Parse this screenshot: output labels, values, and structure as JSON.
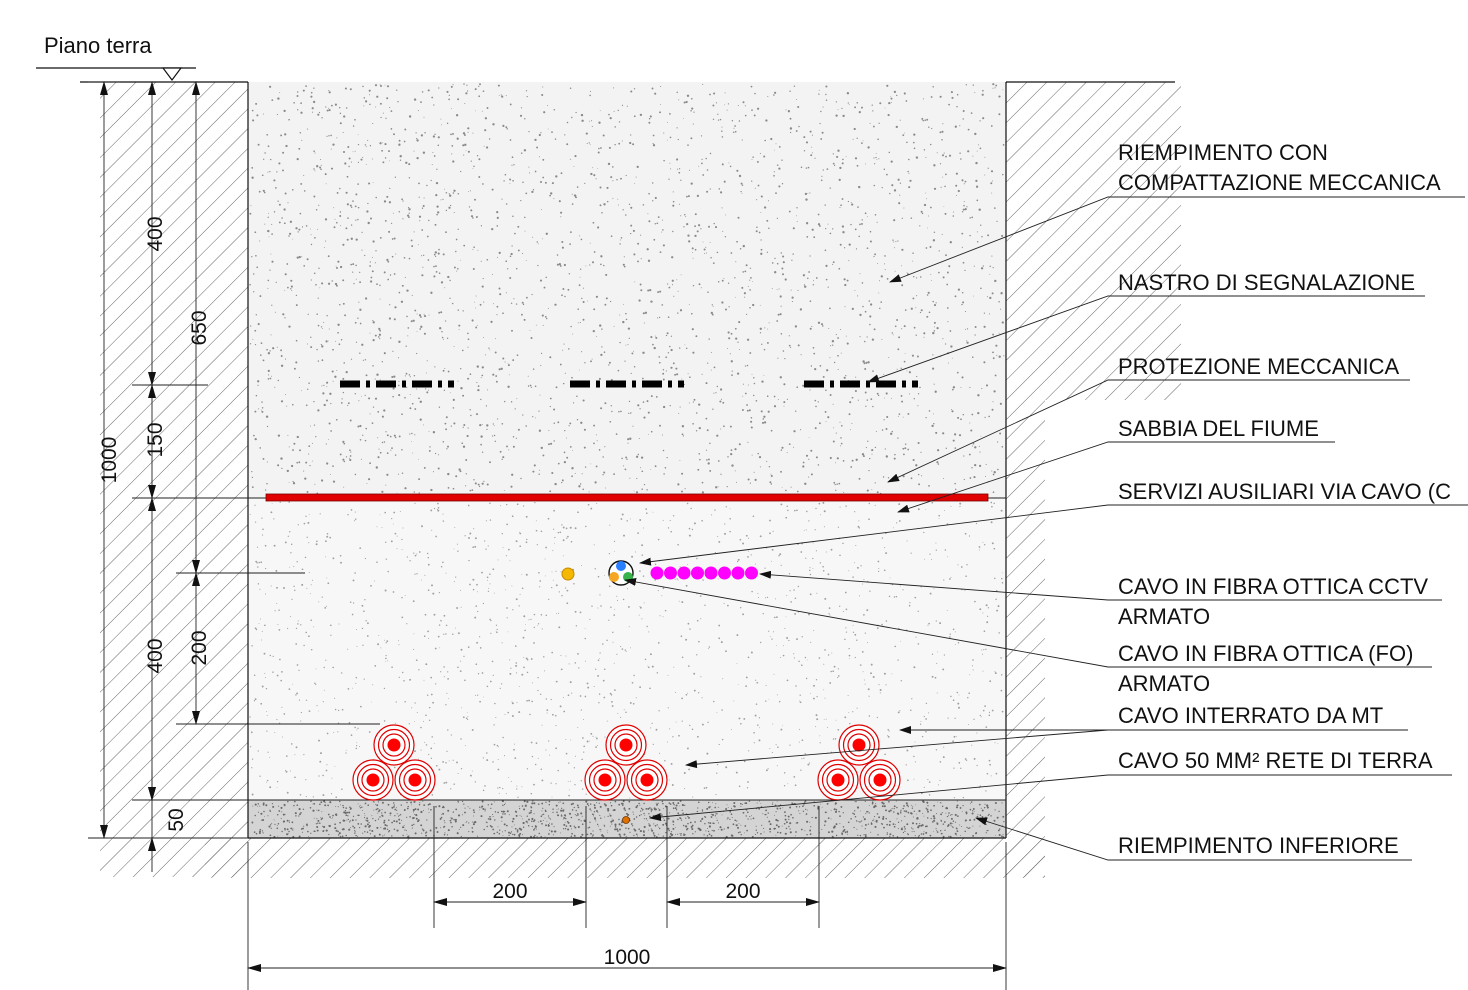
{
  "ground_label": "Piano terra",
  "callouts": [
    {
      "id": "riempimento-compattazione",
      "lines": [
        "RIEMPIMENTO CON",
        "COMPATTAZIONE MECCANICA"
      ]
    },
    {
      "id": "nastro-segnalazione",
      "lines": [
        "NASTRO DI SEGNALAZIONE"
      ]
    },
    {
      "id": "protezione-meccanica",
      "lines": [
        "PROTEZIONE MECCANICA"
      ]
    },
    {
      "id": "sabbia-fiume",
      "lines": [
        "SABBIA DEL FIUME"
      ]
    },
    {
      "id": "servizi-ausiliari",
      "lines": [
        "SERVIZI AUSILIARI VIA CAVO (C"
      ]
    },
    {
      "id": "fibra-cctv",
      "lines": [
        "CAVO IN FIBRA OTTICA CCTV",
        "ARMATO"
      ]
    },
    {
      "id": "fibra-fo",
      "lines": [
        "CAVO IN FIBRA OTTICA (FO)",
        "ARMATO"
      ]
    },
    {
      "id": "cavo-mt",
      "lines": [
        "CAVO INTERRATO DA MT"
      ]
    },
    {
      "id": "rete-terra",
      "lines": [
        "CAVO 50 MM² RETE DI TERRA"
      ]
    },
    {
      "id": "riempimento-inferiore",
      "lines": [
        "RIEMPIMENTO INFERIORE"
      ]
    }
  ],
  "dimensions": {
    "total_depth": "1000",
    "fill_depth": "400",
    "tape_depth": "650",
    "to_protection": "150",
    "sand_layer": "400",
    "fiber_to_cables": "200",
    "bedding": "50",
    "spacing_left": "200",
    "spacing_right": "200",
    "trench_width": "1000"
  },
  "colors": {
    "protection": "#e00000",
    "cable_core": "#ff0000",
    "cctv_fiber": "#ff00ff",
    "aux_service": "#f5b800",
    "earth_wire": "#e07000"
  }
}
